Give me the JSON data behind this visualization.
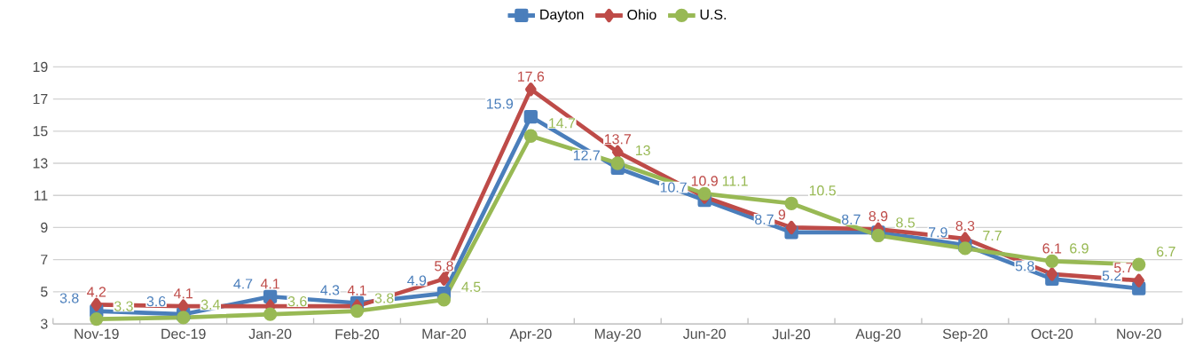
{
  "chart_data": {
    "type": "line",
    "categories": [
      "Nov-19",
      "Dec-19",
      "Jan-20",
      "Feb-20",
      "Mar-20",
      "Apr-20",
      "May-20",
      "Jun-20",
      "Jul-20",
      "Aug-20",
      "Sep-20",
      "Oct-20",
      "Nov-20"
    ],
    "series": [
      {
        "name": "Dayton",
        "color": "#4a7ebb",
        "marker": "square",
        "values": [
          3.8,
          3.6,
          4.7,
          4.3,
          4.9,
          15.9,
          12.7,
          10.7,
          8.7,
          8.7,
          7.9,
          5.8,
          5.2
        ]
      },
      {
        "name": "Ohio",
        "color": "#be4b48",
        "marker": "diamond",
        "values": [
          4.2,
          4.1,
          4.1,
          4.1,
          5.8,
          17.6,
          13.7,
          10.9,
          9,
          8.9,
          8.3,
          6.1,
          5.7
        ]
      },
      {
        "name": "U.S.",
        "color": "#98b954",
        "marker": "circle",
        "values": [
          3.3,
          3.4,
          3.6,
          3.8,
          4.5,
          14.7,
          13,
          11.1,
          10.5,
          8.5,
          7.7,
          6.9,
          6.7
        ]
      }
    ],
    "ylim": [
      3,
      19
    ],
    "yticks": [
      3,
      5,
      7,
      9,
      11,
      13,
      15,
      17,
      19
    ],
    "grid": "y",
    "legend": "top",
    "data_labels": true,
    "line_style": "solid"
  }
}
